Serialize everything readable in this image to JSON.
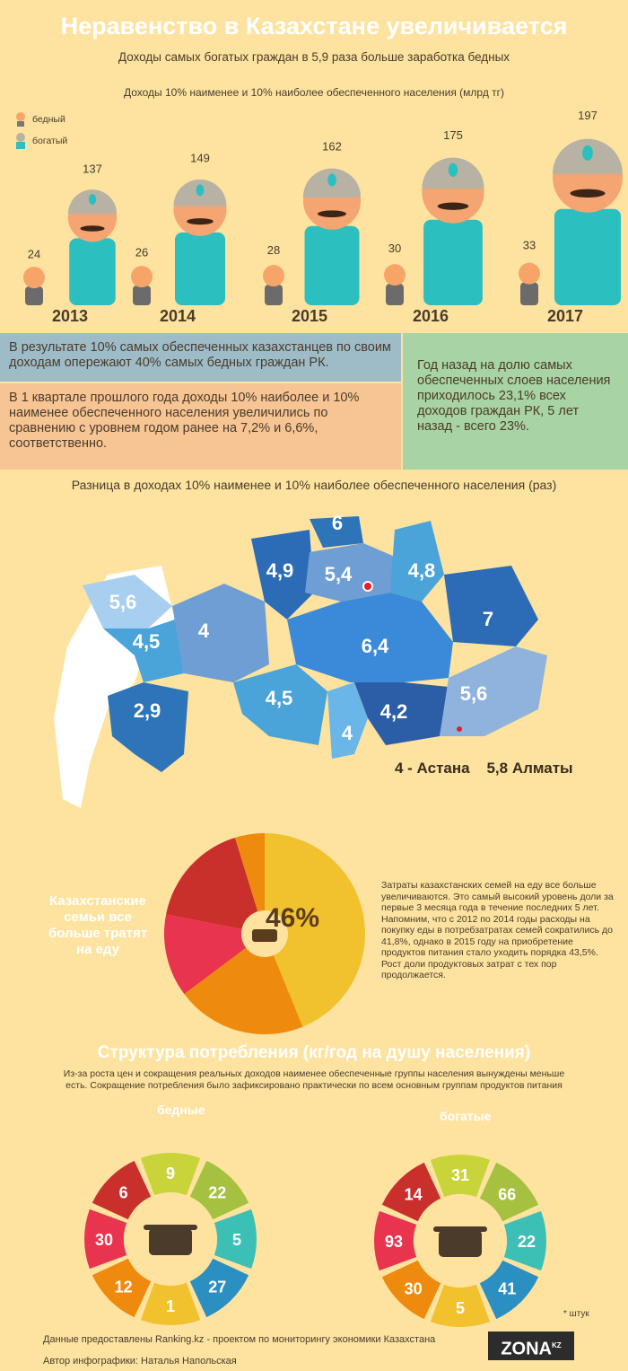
{
  "title": "Неравенство в Казахстане увеличивается",
  "subtitle": "Доходы самых богатых граждан в 5,9 раза больше заработка бедных",
  "income_chart_title": "Доходы 10% наименее и 10% наиболее обеспеченного населения (млрд тг)",
  "legend": {
    "poor": "бедный",
    "rich": "богатый"
  },
  "colors": {
    "teal": "#2bbfc0",
    "beige": "#b8b2a4",
    "skin": "#f4a571",
    "mustache": "#3b2516",
    "poor_skin": "#f7a468",
    "background": "#fde39f"
  },
  "chart_data": [
    {
      "type": "bar",
      "title": "Доходы 10% наименее и 10% наиболее обеспеченного населения (млрд тг)",
      "categories": [
        "2013",
        "2014",
        "2015",
        "2016",
        "2017"
      ],
      "series": [
        {
          "name": "бедный",
          "values": [
            24,
            26,
            28,
            30,
            33
          ]
        },
        {
          "name": "богатый",
          "values": [
            137,
            149,
            162,
            175,
            197
          ]
        }
      ]
    },
    {
      "type": "pie",
      "title": "Казахстанские семьи все больше тратят на еду",
      "labels": [
        "",
        "",
        "",
        "",
        ""
      ],
      "values": [
        46,
        22,
        14,
        18,
        5
      ],
      "colors": [
        "#f2c12e",
        "#ee8a0d",
        "#e8344e",
        "#c9302c",
        "#ee8a0d"
      ]
    },
    {
      "type": "pie",
      "title": "бедные",
      "labels": [
        "",
        "",
        "",
        "",
        "",
        "",
        "",
        ""
      ],
      "values": [
        9,
        22,
        5,
        27,
        1,
        12,
        30,
        6
      ],
      "colors": [
        "#c9d43a",
        "#a6c140",
        "#3cc0b5",
        "#2c8fc2",
        "#f2c12e",
        "#ee8a0d",
        "#e8344e",
        "#c9302c"
      ]
    },
    {
      "type": "pie",
      "title": "богатые",
      "labels": [
        "",
        "",
        "",
        "",
        "",
        "",
        "",
        ""
      ],
      "values": [
        31,
        66,
        22,
        41,
        5,
        30,
        93,
        14
      ],
      "colors": [
        "#c9d43a",
        "#a6c140",
        "#3cc0b5",
        "#2c8fc2",
        "#f2c12e",
        "#ee8a0d",
        "#e8344e",
        "#c9302c"
      ]
    }
  ],
  "info_boxes": {
    "box1": "В результате 10% самых обеспеченных казахстанцев по своим доходам опережают 40% самых бедных граждан РК.",
    "box2": "В 1 квартале прошлого года доходы 10% наиболее и 10% наименее обеспеченного населения увеличились по сравнению с уровнем годом ранее на 7,2% и 6,6%, соответственно.",
    "box3": "Год назад на долю самых обеспеченных слоев населения приходилось 23,1% всех доходов граждан РК, 5 лет назад - всего 23%."
  },
  "map": {
    "title": "Разница в доходах 10% наименее и 10% наиболее обеспеченного населения (раз)",
    "regions": [
      "5,6",
      "4,5",
      "4",
      "2,9",
      "4,9",
      "6",
      "5,4",
      "4,8",
      "7",
      "6,4",
      "4,5",
      "4",
      "4,2",
      "5,6"
    ],
    "cities": "4 - Астана    5,8 Алматы"
  },
  "food": {
    "heading": "Казахстанские семьи все больше тратят на еду",
    "percent": "46%",
    "text": "Затраты казахстанских семей на еду все больше увеличиваются. Это самый высокий уровень доли за первые 3 месяца года в течение последних 5 лет. Напомним, что с 2012 по 2014 годы расходы на покупку еды в потребзатратах семей сократились до 41,8%, однако в 2015 году на приобретение продуктов питания стало уходить порядка 43,5%. Рост доли продуктовых затрат с тех пор продолжается."
  },
  "structure": {
    "title": "Структура потребления (кг/год на душу населения)",
    "subtitle": "Из-за роста цен и сокращения реальных доходов наименее обеспеченные группы населения вынуждены меньше есть. Сокращение потребления было зафиксировано практически по всем основным группам продуктов питания",
    "poor_label": "бедные",
    "rich_label": "богатые",
    "poor_values": [
      "9",
      "22",
      "5",
      "27",
      "1",
      "12",
      "30",
      "6"
    ],
    "rich_values": [
      "31",
      "66",
      "22",
      "41",
      "5",
      "30",
      "93",
      "14"
    ],
    "footnote": "* штук"
  },
  "footer": {
    "source": "Данные предоставлены Ranking.kz - проектом по мониторингу экономики Казахстана",
    "author": "Автор инфографики: Наталья Напольская",
    "logo": "ZONA",
    "logo_sup": "KZ"
  }
}
